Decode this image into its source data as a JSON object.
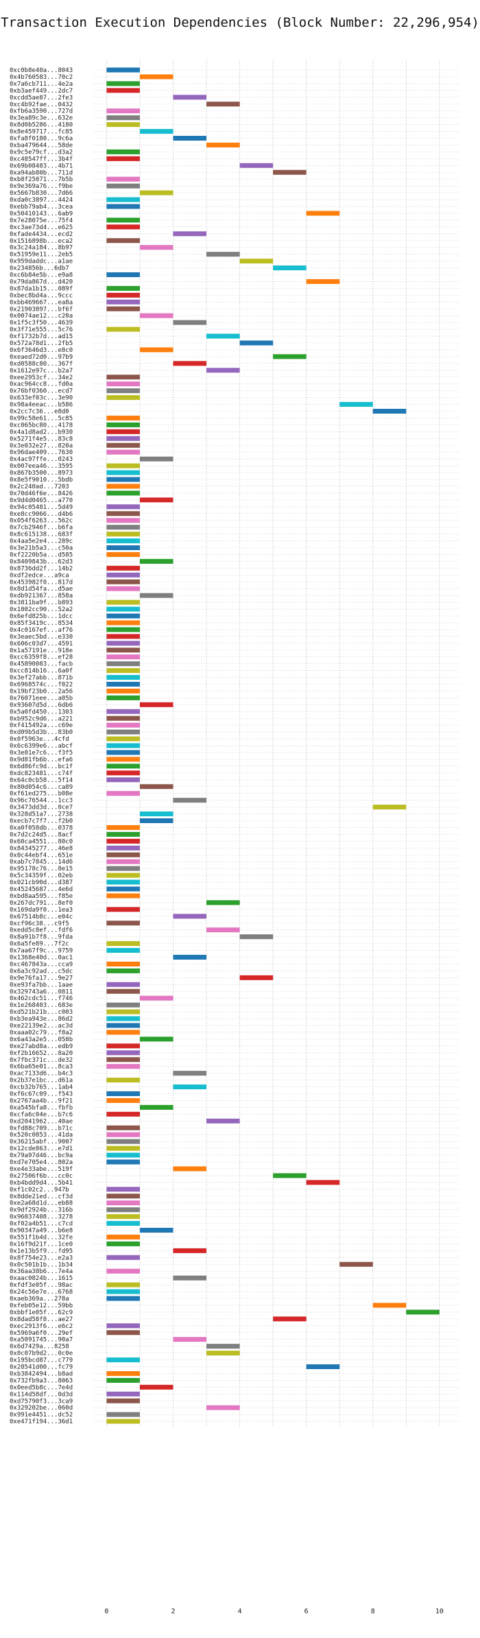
{
  "chart_data": {
    "type": "gantt",
    "title": "Transaction Execution Dependencies (Block Number: 22,296,954)",
    "xlim": [
      -0.4,
      10.6
    ],
    "xticks": [
      0,
      2,
      4,
      6,
      8,
      10
    ],
    "grid": true,
    "grid_style": "dotted",
    "colors": [
      "#1f77b4",
      "#ff7f0e",
      "#2ca02c",
      "#d62728",
      "#9467bd",
      "#8c564b",
      "#e377c2",
      "#7f7f7f",
      "#bcbd22",
      "#17becf"
    ],
    "transactions": [
      {
        "label": "0xc0b8e40a...8043",
        "start": 0,
        "color": 0
      },
      {
        "label": "0x4b760583...70c2",
        "start": 1,
        "color": 1
      },
      {
        "label": "0x7a6cb711...4e2a",
        "start": 0,
        "color": 2
      },
      {
        "label": "0xb3aef449...2dc7",
        "start": 0,
        "color": 3
      },
      {
        "label": "0xcdd5ae87...2fe3",
        "start": 2,
        "color": 4
      },
      {
        "label": "0xc4b92fae...0432",
        "start": 3,
        "color": 5
      },
      {
        "label": "0xfb6a3590...727d",
        "start": 0,
        "color": 6
      },
      {
        "label": "0x3ea89c3e...632e",
        "start": 0,
        "color": 7
      },
      {
        "label": "0x8d0b5286...4180",
        "start": 0,
        "color": 8
      },
      {
        "label": "0x8e459717...fc85",
        "start": 1,
        "color": 9
      },
      {
        "label": "0xfa8f0180...9c6a",
        "start": 2,
        "color": 0
      },
      {
        "label": "0xba479644...58de",
        "start": 3,
        "color": 1
      },
      {
        "label": "0x9c5e79cf...d3a2",
        "start": 0,
        "color": 2
      },
      {
        "label": "0xc48547ff...3b4f",
        "start": 0,
        "color": 3
      },
      {
        "label": "0x69b08483...4b71",
        "start": 4,
        "color": 4
      },
      {
        "label": "0xa94ab80b...711d",
        "start": 5,
        "color": 5
      },
      {
        "label": "0xb8f25071...7b5b",
        "start": 0,
        "color": 6
      },
      {
        "label": "0x9e369a76...f9be",
        "start": 0,
        "color": 7
      },
      {
        "label": "0x5667b830...7d66",
        "start": 1,
        "color": 8
      },
      {
        "label": "0xda0c3897...4424",
        "start": 0,
        "color": 9
      },
      {
        "label": "0xebb79ab4...3cea",
        "start": 0,
        "color": 0
      },
      {
        "label": "0x50410143...6ab9",
        "start": 6,
        "color": 1
      },
      {
        "label": "0x7e28075e...75f4",
        "start": 0,
        "color": 2
      },
      {
        "label": "0xc3ae73d4...e625",
        "start": 0,
        "color": 3
      },
      {
        "label": "0xfade4434...ecd2",
        "start": 2,
        "color": 4
      },
      {
        "label": "0x1516898b...eca2",
        "start": 0,
        "color": 5
      },
      {
        "label": "0x3c24a184...8b97",
        "start": 1,
        "color": 6
      },
      {
        "label": "0x51959e11...2eb5",
        "start": 3,
        "color": 7
      },
      {
        "label": "0x959daddc...a1ae",
        "start": 4,
        "color": 8
      },
      {
        "label": "0x234856b...6db7",
        "start": 5,
        "color": 9
      },
      {
        "label": "0xc6b84e5b...e9a8",
        "start": 0,
        "color": 0
      },
      {
        "label": "0x79da867d...d420",
        "start": 6,
        "color": 1
      },
      {
        "label": "0x87da1b15...089f",
        "start": 0,
        "color": 2
      },
      {
        "label": "0xbec8bd4a...9ccc",
        "start": 0,
        "color": 3
      },
      {
        "label": "0xbb469667...ea8a",
        "start": 0,
        "color": 4
      },
      {
        "label": "0x21903897...bf6f",
        "start": 0,
        "color": 5
      },
      {
        "label": "0x0074ae12...c20a",
        "start": 1,
        "color": 6
      },
      {
        "label": "0x1f5c3f50...4639",
        "start": 2,
        "color": 7
      },
      {
        "label": "0x3f71e555...5c76",
        "start": 0,
        "color": 8
      },
      {
        "label": "0xf1732b7d...ad15",
        "start": 3,
        "color": 9
      },
      {
        "label": "0x572a78d1...2fb5",
        "start": 4,
        "color": 0
      },
      {
        "label": "0x6f3646d3...e8c0",
        "start": 1,
        "color": 1
      },
      {
        "label": "0xeaed72d0...97b9",
        "start": 5,
        "color": 2
      },
      {
        "label": "0xd0588c80...367f",
        "start": 2,
        "color": 3
      },
      {
        "label": "0x1612e97c...b2a7",
        "start": 3,
        "color": 4
      },
      {
        "label": "0xee2953cf...34e2",
        "start": 0,
        "color": 5
      },
      {
        "label": "0xac964cc8...fd0a",
        "start": 0,
        "color": 6
      },
      {
        "label": "0x76bf0360...ecd7",
        "start": 0,
        "color": 7
      },
      {
        "label": "0x633ef03c...3e90",
        "start": 0,
        "color": 8
      },
      {
        "label": "0x98a4eeac...b586",
        "start": 7,
        "color": 9
      },
      {
        "label": "0x2cc7c36...e8d0",
        "start": 8,
        "color": 0
      },
      {
        "label": "0x99c58e61...5c85",
        "start": 0,
        "color": 1
      },
      {
        "label": "0xc065bc80...4178",
        "start": 0,
        "color": 2
      },
      {
        "label": "0x4a1d8ad2...b930",
        "start": 0,
        "color": 3
      },
      {
        "label": "0x5271f4e5...83c8",
        "start": 0,
        "color": 4
      },
      {
        "label": "0x3e032e27...820a",
        "start": 0,
        "color": 5
      },
      {
        "label": "0x96dae409...7630",
        "start": 0,
        "color": 6
      },
      {
        "label": "0x4ac97ffe...0243",
        "start": 1,
        "color": 7
      },
      {
        "label": "0x007eea46...3595",
        "start": 0,
        "color": 8
      },
      {
        "label": "0x867b3500...8973",
        "start": 0,
        "color": 9
      },
      {
        "label": "0x8e5f9010...5bdb",
        "start": 0,
        "color": 0
      },
      {
        "label": "0x2c240ad...7203",
        "start": 0,
        "color": 1
      },
      {
        "label": "0x70d46f6e...8426",
        "start": 0,
        "color": 2
      },
      {
        "label": "0x9d4d0465...a770",
        "start": 1,
        "color": 3
      },
      {
        "label": "0x94c05481...5d49",
        "start": 0,
        "color": 4
      },
      {
        "label": "0xe8cc9066...d4b6",
        "start": 0,
        "color": 5
      },
      {
        "label": "0x054f6263...562c",
        "start": 0,
        "color": 6
      },
      {
        "label": "0x7cb2946f...b6fa",
        "start": 0,
        "color": 7
      },
      {
        "label": "0x8c615138...683f",
        "start": 0,
        "color": 8
      },
      {
        "label": "0x4aa5e2e4...289c",
        "start": 0,
        "color": 9
      },
      {
        "label": "0x3e21b5a3...c50a",
        "start": 0,
        "color": 0
      },
      {
        "label": "0xf2220b5a...d585",
        "start": 0,
        "color": 1
      },
      {
        "label": "0x8409843b...62d3",
        "start": 1,
        "color": 2
      },
      {
        "label": "0x8736dd2f...14b2",
        "start": 0,
        "color": 3
      },
      {
        "label": "0xdf2edce...a9ca",
        "start": 0,
        "color": 4
      },
      {
        "label": "0x453982f0...817d",
        "start": 0,
        "color": 5
      },
      {
        "label": "0x8d1d54fa...d5ae",
        "start": 0,
        "color": 6
      },
      {
        "label": "0xdb921367...858a",
        "start": 1,
        "color": 7
      },
      {
        "label": "0x3811ba9f...b893",
        "start": 0,
        "color": 8
      },
      {
        "label": "0x1002cc90...52a2",
        "start": 0,
        "color": 9
      },
      {
        "label": "0x6efd825b...1dcc",
        "start": 0,
        "color": 0
      },
      {
        "label": "0x85f3419c...8534",
        "start": 0,
        "color": 1
      },
      {
        "label": "0x4c0167ef...af76",
        "start": 0,
        "color": 2
      },
      {
        "label": "0x3eaec5bd...e330",
        "start": 0,
        "color": 3
      },
      {
        "label": "0x606c03d7...4591",
        "start": 0,
        "color": 4
      },
      {
        "label": "0x1a57191e...918e",
        "start": 0,
        "color": 5
      },
      {
        "label": "0xcc6359f8...ef28",
        "start": 0,
        "color": 6
      },
      {
        "label": "0x45890083...facb",
        "start": 0,
        "color": 7
      },
      {
        "label": "0xcc814b16...6a0f",
        "start": 0,
        "color": 8
      },
      {
        "label": "0x3ef27abb...871b",
        "start": 0,
        "color": 9
      },
      {
        "label": "0x6968574c...f022",
        "start": 0,
        "color": 0
      },
      {
        "label": "0x19bf23b0...2a56",
        "start": 0,
        "color": 1
      },
      {
        "label": "0x76071eee...a05b",
        "start": 0,
        "color": 2
      },
      {
        "label": "0x93607d5d...6db6",
        "start": 1,
        "color": 3
      },
      {
        "label": "0x5a0fd450...1303",
        "start": 0,
        "color": 4
      },
      {
        "label": "0xb952c9d6...a221",
        "start": 0,
        "color": 5
      },
      {
        "label": "0xf415492a...c69e",
        "start": 0,
        "color": 6
      },
      {
        "label": "0xd09b5d3b...83b0",
        "start": 0,
        "color": 7
      },
      {
        "label": "0x0f5963e...4cfd",
        "start": 0,
        "color": 8
      },
      {
        "label": "0x6c6399e6...abcf",
        "start": 0,
        "color": 9
      },
      {
        "label": "0x3e81e7c6...f3f5",
        "start": 0,
        "color": 0
      },
      {
        "label": "0x9d81fb6b...efa6",
        "start": 0,
        "color": 1
      },
      {
        "label": "0x6d86fc9d...bc1f",
        "start": 0,
        "color": 2
      },
      {
        "label": "0xdc823481...c74f",
        "start": 0,
        "color": 3
      },
      {
        "label": "0x64c0cb58...5f14",
        "start": 0,
        "color": 4
      },
      {
        "label": "0x80d054c6...ca89",
        "start": 1,
        "color": 5
      },
      {
        "label": "0xf61ed275...b08e",
        "start": 0,
        "color": 6
      },
      {
        "label": "0x96c76544...1cc3",
        "start": 2,
        "color": 7
      },
      {
        "label": "0x3473dd3d...0ce7",
        "start": 8,
        "color": 8
      },
      {
        "label": "0x328d51a7...2738",
        "start": 1,
        "color": 9
      },
      {
        "label": "0xecb7c7f7...f2b0",
        "start": 1,
        "color": 0
      },
      {
        "label": "0xa0f058db...0378",
        "start": 0,
        "color": 1
      },
      {
        "label": "0x7d2c24d5...8acf",
        "start": 0,
        "color": 2
      },
      {
        "label": "0x60ca4551...80c0",
        "start": 0,
        "color": 3
      },
      {
        "label": "0x84345277...46e8",
        "start": 0,
        "color": 4
      },
      {
        "label": "0x0c44ebf4...651e",
        "start": 0,
        "color": 5
      },
      {
        "label": "0xab7c7845...14d6",
        "start": 0,
        "color": 6
      },
      {
        "label": "0x95178c76...8e15",
        "start": 0,
        "color": 7
      },
      {
        "label": "0x5c34359f...02eb",
        "start": 0,
        "color": 8
      },
      {
        "label": "0x021cb90d...d387",
        "start": 0,
        "color": 9
      },
      {
        "label": "0x45245687...4e6d",
        "start": 0,
        "color": 0
      },
      {
        "label": "0xbd8aa595...f85e",
        "start": 0,
        "color": 1
      },
      {
        "label": "0x267dc791...8ef0",
        "start": 3,
        "color": 2
      },
      {
        "label": "0x169da9f0...1ea3",
        "start": 0,
        "color": 3
      },
      {
        "label": "0x67514b8c...e04c",
        "start": 2,
        "color": 4
      },
      {
        "label": "0xcf96c38...c9f5",
        "start": 0,
        "color": 5
      },
      {
        "label": "0xedd5c8ef...fdf6",
        "start": 3,
        "color": 6
      },
      {
        "label": "0x8a91b7f8...9fda",
        "start": 4,
        "color": 7
      },
      {
        "label": "0x6a5fe89...7f2c",
        "start": 0,
        "color": 8
      },
      {
        "label": "0x7aa67f9c...9759",
        "start": 0,
        "color": 9
      },
      {
        "label": "0x1368e40d...0ac1",
        "start": 2,
        "color": 0
      },
      {
        "label": "0xc467843a...cca9",
        "start": 0,
        "color": 1
      },
      {
        "label": "0x6a3c92ad...c5dc",
        "start": 0,
        "color": 2
      },
      {
        "label": "0x9e76fa17...9e27",
        "start": 4,
        "color": 3
      },
      {
        "label": "0xe93fa7bb...1aae",
        "start": 0,
        "color": 4
      },
      {
        "label": "0x329743a6...0811",
        "start": 0,
        "color": 5
      },
      {
        "label": "0x462cdc51...f746",
        "start": 1,
        "color": 6
      },
      {
        "label": "0x1e268403...683e",
        "start": 0,
        "color": 7
      },
      {
        "label": "0xd521b21b...c003",
        "start": 0,
        "color": 8
      },
      {
        "label": "0xb3ea943e...86d2",
        "start": 0,
        "color": 9
      },
      {
        "label": "0xe22139e2...ac3d",
        "start": 0,
        "color": 0
      },
      {
        "label": "0xaaa02c79...f8a2",
        "start": 0,
        "color": 1
      },
      {
        "label": "0x6a43a2e5...058b",
        "start": 1,
        "color": 2
      },
      {
        "label": "0xe27abd8a...edb9",
        "start": 0,
        "color": 3
      },
      {
        "label": "0xf2b16652...8a20",
        "start": 0,
        "color": 4
      },
      {
        "label": "0x7fbc371c...de32",
        "start": 0,
        "color": 5
      },
      {
        "label": "0x6ba65e01...8ca3",
        "start": 0,
        "color": 6
      },
      {
        "label": "0xac7133d6...b4c3",
        "start": 2,
        "color": 7
      },
      {
        "label": "0x2b37e1bc...d61a",
        "start": 0,
        "color": 8
      },
      {
        "label": "0xcb32b765...1ab4",
        "start": 2,
        "color": 9
      },
      {
        "label": "0xf6c67c09...f543",
        "start": 0,
        "color": 0
      },
      {
        "label": "0x2767aa4b...9f21",
        "start": 0,
        "color": 1
      },
      {
        "label": "0xa545bfa8...fbfb",
        "start": 1,
        "color": 2
      },
      {
        "label": "0xcfa6c04e...b7c6",
        "start": 0,
        "color": 3
      },
      {
        "label": "0xd2041962...40ae",
        "start": 3,
        "color": 4
      },
      {
        "label": "0xfd88c709...b71c",
        "start": 0,
        "color": 5
      },
      {
        "label": "0x520c0853...41da",
        "start": 0,
        "color": 6
      },
      {
        "label": "0x36215abf...9007",
        "start": 0,
        "color": 7
      },
      {
        "label": "0x12cde863...e7d1",
        "start": 0,
        "color": 8
      },
      {
        "label": "0x79a97d46...bc9a",
        "start": 0,
        "color": 9
      },
      {
        "label": "0xd7e705e4...802a",
        "start": 0,
        "color": 0
      },
      {
        "label": "0xe4e33abe...519f",
        "start": 2,
        "color": 1
      },
      {
        "label": "0x27506f6b...cc0c",
        "start": 5,
        "color": 2
      },
      {
        "label": "0xb4bdd9d4...5b41",
        "start": 6,
        "color": 3
      },
      {
        "label": "0xf1c02c2...947b",
        "start": 0,
        "color": 4
      },
      {
        "label": "0x8dde21ed...cf3d",
        "start": 0,
        "color": 5
      },
      {
        "label": "0xe2a68d1d...eb88",
        "start": 0,
        "color": 6
      },
      {
        "label": "0x9df2924b...316b",
        "start": 0,
        "color": 7
      },
      {
        "label": "0x96037408...3278",
        "start": 0,
        "color": 8
      },
      {
        "label": "0xf02a4b51...c7cd",
        "start": 0,
        "color": 9
      },
      {
        "label": "0x90347a49...b6e8",
        "start": 1,
        "color": 0
      },
      {
        "label": "0x551f1b4d...32fe",
        "start": 0,
        "color": 1
      },
      {
        "label": "0x16f9d21f...1ce0",
        "start": 0,
        "color": 2
      },
      {
        "label": "0x1e13b5f9...fd95",
        "start": 2,
        "color": 3
      },
      {
        "label": "0x8f754e23...e2a3",
        "start": 0,
        "color": 4
      },
      {
        "label": "0x0c501b1b...1b34",
        "start": 7,
        "color": 5
      },
      {
        "label": "0x36aa38b6...7e4a",
        "start": 0,
        "color": 6
      },
      {
        "label": "0xaac0824b...1615",
        "start": 2,
        "color": 7
      },
      {
        "label": "0xfdf3e05f...98ac",
        "start": 0,
        "color": 8
      },
      {
        "label": "0x24c56e7e...6768",
        "start": 0,
        "color": 9
      },
      {
        "label": "0xaeb369a...278a",
        "start": 0,
        "color": 0
      },
      {
        "label": "0xfeb05e12...59bb",
        "start": 8,
        "color": 1
      },
      {
        "label": "0xbbf1e05f...62c9",
        "start": 9,
        "color": 2
      },
      {
        "label": "0x8dad58f8...ae27",
        "start": 5,
        "color": 3
      },
      {
        "label": "0xec2913f6...e6c2",
        "start": 0,
        "color": 4
      },
      {
        "label": "0x5969a6f0...29ef",
        "start": 0,
        "color": 5
      },
      {
        "label": "0xa5091745...90a7",
        "start": 2,
        "color": 6
      },
      {
        "label": "0x6d7429a...8258",
        "start": 3,
        "color": 7
      },
      {
        "label": "0x0c07b9d2...0c0e",
        "start": 3,
        "color": 8
      },
      {
        "label": "0x195bcd87...c779",
        "start": 0,
        "color": 9
      },
      {
        "label": "0x28541d00...fc79",
        "start": 6,
        "color": 0
      },
      {
        "label": "0xb3842494...b8ad",
        "start": 0,
        "color": 1
      },
      {
        "label": "0x732fb9a3...8063",
        "start": 0,
        "color": 2
      },
      {
        "label": "0x0eed5b8c...7e4d",
        "start": 1,
        "color": 3
      },
      {
        "label": "0x114d58df...0d3d",
        "start": 0,
        "color": 4
      },
      {
        "label": "0xd75790f3...3ca9",
        "start": 0,
        "color": 5
      },
      {
        "label": "0x329202be...060d",
        "start": 3,
        "color": 6
      },
      {
        "label": "0x991e4451...dc52",
        "start": 0,
        "color": 7
      },
      {
        "label": "0xe471f194...36d1",
        "start": 0,
        "color": 8
      }
    ]
  }
}
